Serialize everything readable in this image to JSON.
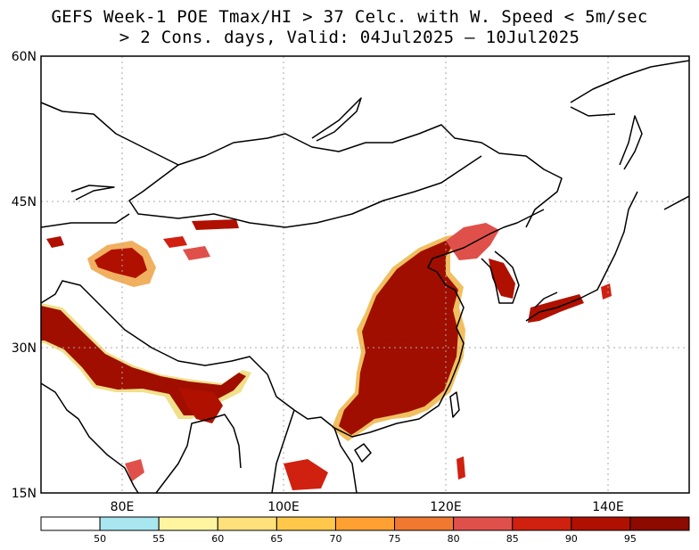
{
  "title_line1": "GEFS Week-1 POE Tmax/HI > 37 Celc. with W. Speed < 5m/sec",
  "title_line2": "> 2 Cons. days, Valid: 04Jul2025 – 10Jul2025",
  "map": {
    "lon_range": [
      70,
      150
    ],
    "lat_range": [
      15,
      60
    ],
    "grid": "dotted",
    "lat_ticks": [
      {
        "label": "60N",
        "value": 60
      },
      {
        "label": "45N",
        "value": 45
      },
      {
        "label": "30N",
        "value": 30
      },
      {
        "label": "15N",
        "value": 15
      }
    ],
    "lon_ticks": [
      {
        "label": "80E",
        "value": 80
      },
      {
        "label": "100E",
        "value": 100
      },
      {
        "label": "120E",
        "value": 120
      },
      {
        "label": "140E",
        "value": 140
      }
    ]
  },
  "colorbar": {
    "boundaries": [
      "50",
      "55",
      "60",
      "65",
      "70",
      "75",
      "80",
      "85",
      "90",
      "95"
    ],
    "colors": [
      "#ffffff",
      "#a8e6f0",
      "#fff5a0",
      "#ffe07a",
      "#ffc84a",
      "#ffa032",
      "#f07830",
      "#e0504a",
      "#d02010",
      "#b01000",
      "#8c0a00"
    ]
  }
}
